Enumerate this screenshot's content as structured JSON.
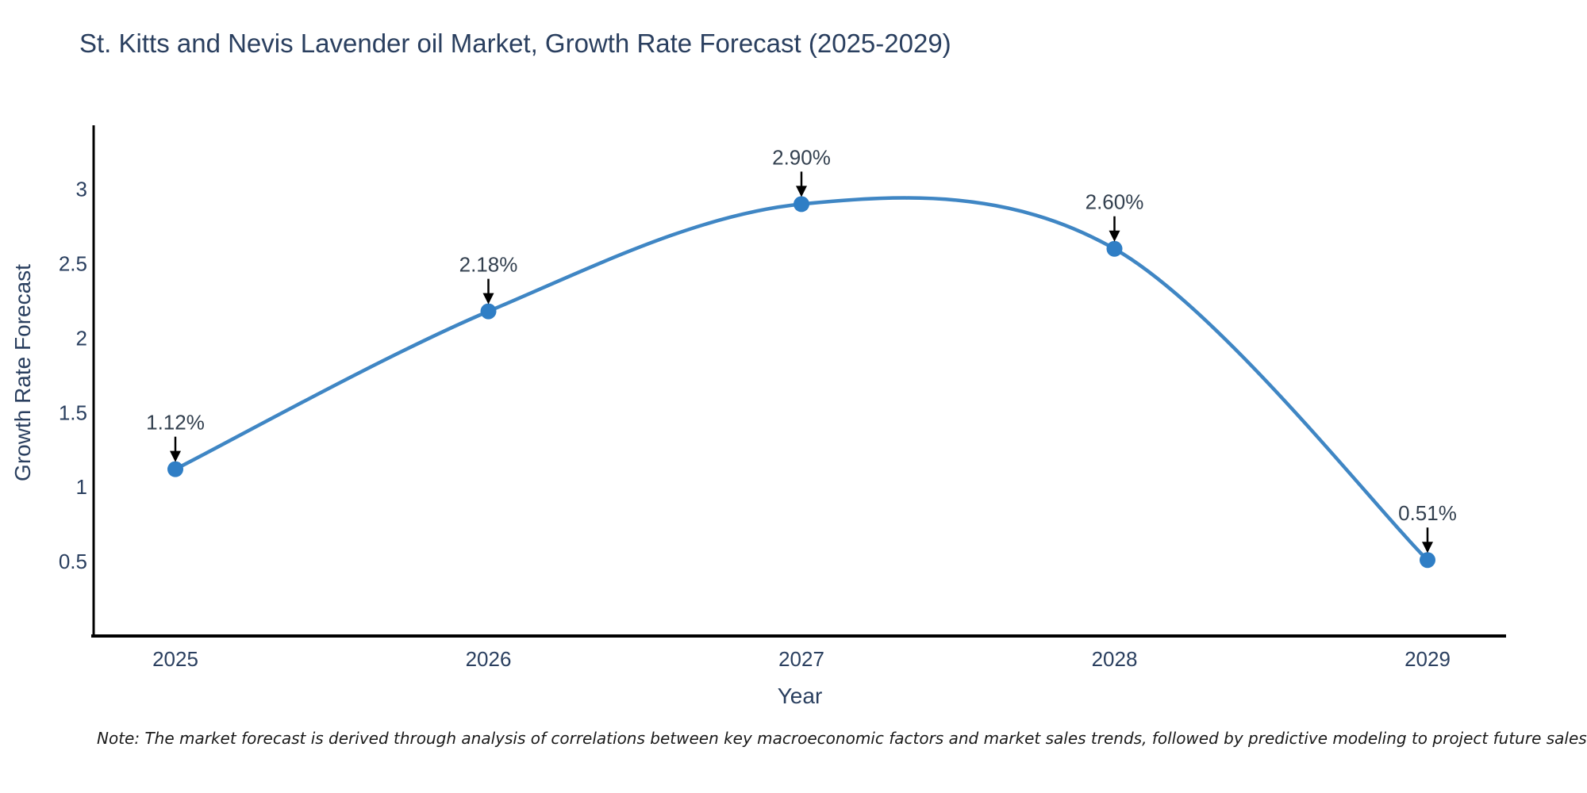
{
  "title": "St. Kitts and Nevis Lavender oil Market, Growth Rate Forecast (2025-2029)",
  "note": "Note: The market forecast is derived through analysis of correlations between key macroeconomic factors and market sales trends, followed by predictive modeling to project future sales",
  "chart_data": {
    "type": "line",
    "line_shape": "spline",
    "title": "St. Kitts and Nevis Lavender oil Market, Growth Rate Forecast (2025-2029)",
    "xlabel": "Year",
    "ylabel": "Growth Rate Forecast",
    "categories": [
      "2025",
      "2026",
      "2027",
      "2028",
      "2029"
    ],
    "series": [
      {
        "name": "Growth Rate Forecast",
        "values": [
          1.12,
          2.18,
          2.9,
          2.6,
          0.51
        ],
        "point_labels": [
          "1.12%",
          "2.18%",
          "2.90%",
          "2.60%",
          "0.51%"
        ]
      }
    ],
    "yticks": [
      0.5,
      1,
      1.5,
      2,
      2.5,
      3
    ],
    "ylim": [
      0,
      3.44
    ],
    "grid": false,
    "legend_position": "none",
    "markers": true,
    "annotations_arrows": true,
    "colors": {
      "line": "#3f86c4",
      "marker": "#2f7ec5",
      "text": "#2a3f5f",
      "annotation_text": "#33404f",
      "axis_line": "#000000",
      "arrow": "#000000",
      "note_text": "#1a1a1a",
      "background": "#ffffff"
    }
  }
}
